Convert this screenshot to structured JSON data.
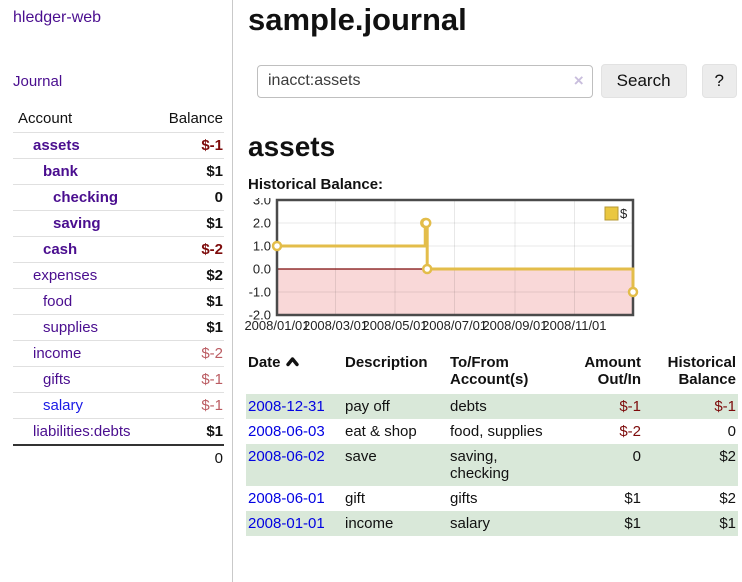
{
  "brand": "hledger-web",
  "nav": {
    "journal_label": "Journal"
  },
  "sidebar_table": {
    "account_header": "Account",
    "balance_header": "Balance",
    "accounts": [
      {
        "name": "assets",
        "level": 1,
        "bold": true,
        "balance": "$-1",
        "balance_style": "strong_neg"
      },
      {
        "name": "bank",
        "level": 2,
        "bold": true,
        "balance": "$1",
        "balance_style": "default"
      },
      {
        "name": "checking",
        "level": 3,
        "bold": true,
        "balance": "0",
        "balance_style": "default"
      },
      {
        "name": "saving",
        "level": 3,
        "bold": true,
        "balance": "$1",
        "balance_style": "default"
      },
      {
        "name": "cash",
        "level": 2,
        "bold": true,
        "balance": "$-2",
        "balance_style": "strong_neg"
      },
      {
        "name": "expenses",
        "level": 1,
        "bold": false,
        "balance": "$2",
        "balance_style": "default"
      },
      {
        "name": "food",
        "level": 2,
        "bold": false,
        "balance": "$1",
        "balance_style": "default"
      },
      {
        "name": "supplies",
        "level": 2,
        "bold": false,
        "balance": "$1",
        "balance_style": "default"
      },
      {
        "name": "income",
        "level": 1,
        "bold": false,
        "balance": "$-2",
        "balance_style": "soft_neg"
      },
      {
        "name": "gifts",
        "level": 2,
        "bold": false,
        "balance": "$-1",
        "balance_style": "soft_neg"
      },
      {
        "name": "salary",
        "level": 2,
        "bold": false,
        "balance": "$-1",
        "balance_style": "soft_neg",
        "link_color": "#1a1ae6"
      },
      {
        "name": "liabilities:debts",
        "level": 1,
        "bold": false,
        "balance": "$1",
        "balance_style": "default"
      }
    ],
    "total": "0"
  },
  "header": {
    "title": "sample.journal"
  },
  "search": {
    "value": "inacct:assets",
    "clear_icon": "×",
    "search_button": "Search",
    "help_button": "?"
  },
  "account_page": {
    "heading": "assets",
    "chart_label": "Historical Balance:"
  },
  "chart_data": {
    "type": "line",
    "title": "Historical Balance",
    "step": "after",
    "legend": "$",
    "legend_position": "top-right",
    "x_range": [
      "2008-01-01",
      "2008-12-31"
    ],
    "ylim": [
      -2.0,
      3.0
    ],
    "y_ticks": [
      3.0,
      2.0,
      1.0,
      0.0,
      -1.0,
      -2.0
    ],
    "x_ticks": [
      "2008/01/01",
      "2008/03/01",
      "2008/05/01",
      "2008/07/01",
      "2008/09/01",
      "2008/11/01"
    ],
    "series": [
      {
        "name": "$",
        "points": [
          [
            "2008-01-01",
            1
          ],
          [
            "2008-06-01",
            2
          ],
          [
            "2008-06-02",
            2
          ],
          [
            "2008-06-03",
            0
          ],
          [
            "2008-12-31",
            -1
          ]
        ]
      }
    ],
    "grid": true,
    "negative_area_shaded": true,
    "colors": {
      "line": "#e3bd4a",
      "marker_fill": "#ffffff",
      "negative_area": "#f9d8d8",
      "zero_line": "#7d0b0b",
      "border": "#4a4a4a"
    }
  },
  "register": {
    "columns": [
      "Date",
      "Description",
      "To/From Account(s)",
      "Amount Out/In",
      "Historical Balance"
    ],
    "sort": {
      "column": "Date",
      "direction": "ascending"
    },
    "rows": [
      {
        "date": "2008-12-31",
        "description": "pay off",
        "accounts": "debts",
        "amount": "$-1",
        "amount_neg": true,
        "balance": "$-1",
        "balance_neg": true
      },
      {
        "date": "2008-06-03",
        "description": "eat & shop",
        "accounts": "food, supplies",
        "amount": "$-2",
        "amount_neg": true,
        "balance": "0",
        "balance_neg": false
      },
      {
        "date": "2008-06-02",
        "description": "save",
        "accounts": "saving, checking",
        "amount": "0",
        "amount_neg": false,
        "balance": "$2",
        "balance_neg": false
      },
      {
        "date": "2008-06-01",
        "description": "gift",
        "accounts": "gifts",
        "amount": "$1",
        "amount_neg": false,
        "balance": "$2",
        "balance_neg": false
      },
      {
        "date": "2008-01-01",
        "description": "income",
        "accounts": "salary",
        "amount": "$1",
        "amount_neg": false,
        "balance": "$1",
        "balance_neg": false
      }
    ]
  }
}
